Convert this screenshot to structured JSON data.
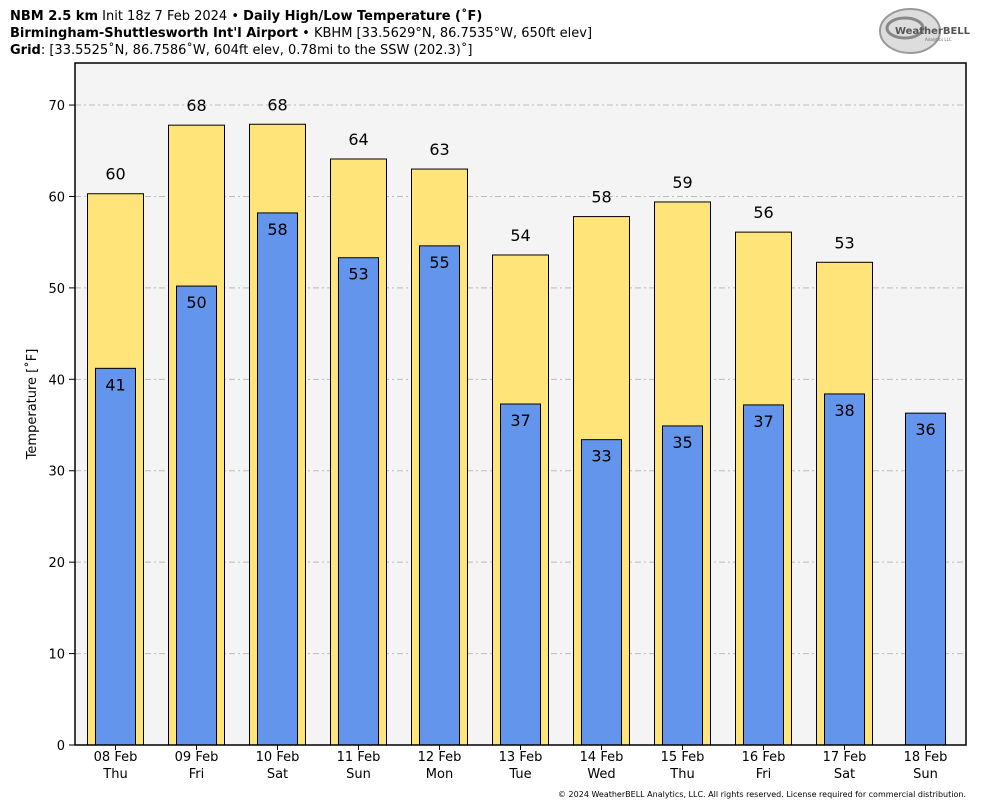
{
  "chart_data": {
    "type": "bar",
    "header": {
      "model": "NBM 2.5 km",
      "init": "Init 18z 7 Feb 2024",
      "separator": "•",
      "product": "Daily High/Low Temperature (˚F)",
      "station": "Birmingham-Shuttlesworth Int'l Airport",
      "station_info": "KBHM [33.5629°N, 86.7535°W, 650ft elev]",
      "grid_label": "Grid",
      "grid_info": ": [33.5525˚N, 86.7586˚W, 604ft elev, 0.78mi to the SSW (202.3)˚]"
    },
    "logo": "WeatherBELL",
    "logo_sub": "Analytics LLC",
    "footer": "© 2024 WeatherBELL Analytics, LLC. All rights reserved. License required for commercial distribution.",
    "ylabel": "Temperature [˚F]",
    "categories": [
      "08 Feb",
      "09 Feb",
      "10 Feb",
      "11 Feb",
      "12 Feb",
      "13 Feb",
      "14 Feb",
      "15 Feb",
      "16 Feb",
      "17 Feb",
      "18 Feb"
    ],
    "category_sublabels": [
      "Thu",
      "Fri",
      "Sat",
      "Sun",
      "Mon",
      "Tue",
      "Wed",
      "Thu",
      "Fri",
      "Sat",
      "Sun"
    ],
    "series": [
      {
        "name": "High",
        "color": "#ffe47a",
        "values": [
          60.3,
          67.8,
          67.9,
          64.1,
          63.0,
          53.6,
          57.8,
          59.4,
          56.1,
          52.8,
          null
        ],
        "value_labels": [
          "60",
          "68",
          "68",
          "64",
          "63",
          "54",
          "58",
          "59",
          "56",
          "53",
          null
        ]
      },
      {
        "name": "Low",
        "color": "#6495ed",
        "values": [
          41.2,
          50.2,
          58.2,
          53.3,
          54.6,
          37.3,
          33.4,
          34.9,
          37.2,
          38.4,
          36.3
        ],
        "value_labels": [
          "41",
          "50",
          "58",
          "53",
          "55",
          "37",
          "33",
          "35",
          "37",
          "38",
          "36"
        ]
      }
    ],
    "ylim": [
      0,
      74.6
    ],
    "yticks": [
      0,
      10,
      20,
      30,
      40,
      50,
      60,
      70
    ],
    "grid": true
  }
}
